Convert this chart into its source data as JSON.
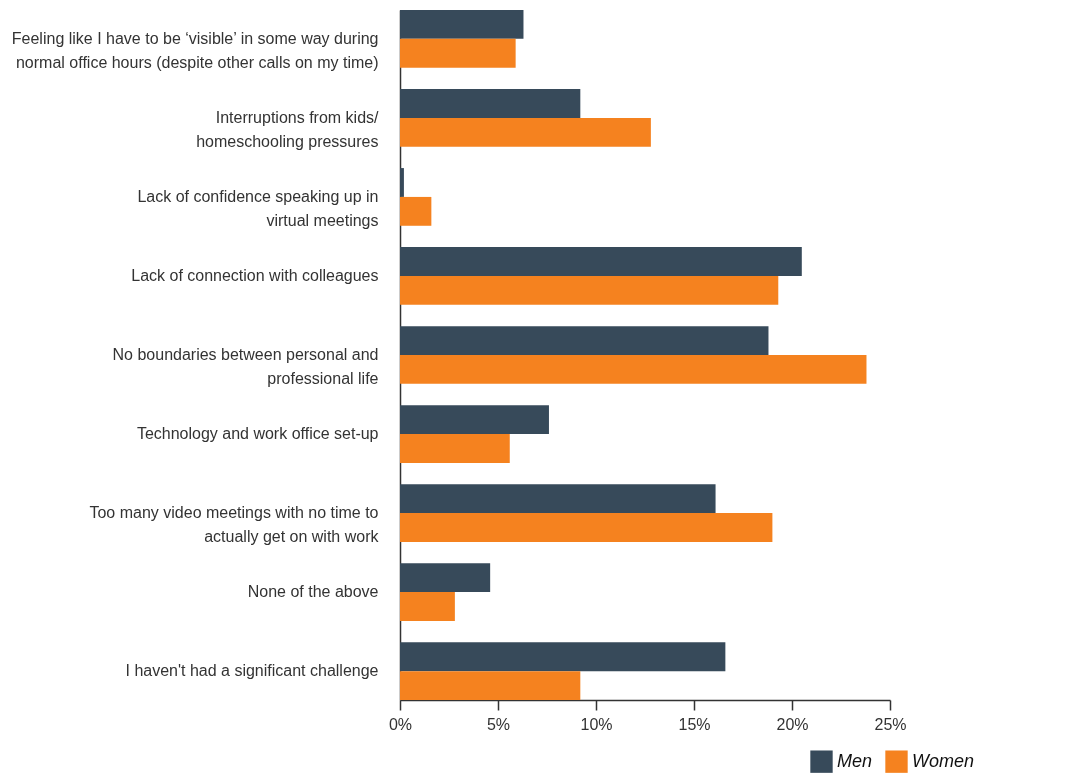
{
  "chart_data": {
    "type": "bar",
    "orientation": "horizontal",
    "categories": [
      "Feeling like I have to be ‘visible’ in some way during\nnormal office hours (despite other calls on my time)",
      "Interruptions from kids/\nhomeschooling pressures",
      "Lack of confidence speaking up in\nvirtual meetings",
      "Lack of connection with colleagues",
      "No boundaries between personal and\nprofessional life",
      "Technology and work office set-up",
      "Too many video meetings with no time to\nactually get on with work",
      "None of the above",
      "I haven't had a significant challenge"
    ],
    "series": [
      {
        "name": "Men",
        "color": "#374a5a",
        "values": [
          6.3,
          9.2,
          0.2,
          20.5,
          18.8,
          7.6,
          16.1,
          4.6,
          16.6
        ]
      },
      {
        "name": "Women",
        "color": "#f5821f",
        "values": [
          5.9,
          12.8,
          1.6,
          19.3,
          23.8,
          5.6,
          19.0,
          2.8,
          9.2
        ]
      }
    ],
    "xlim": [
      0,
      25
    ],
    "xticks": [
      {
        "value": 0,
        "label": "0%"
      },
      {
        "value": 5,
        "label": "5%"
      },
      {
        "value": 10,
        "label": "10%"
      },
      {
        "value": 15,
        "label": "15%"
      },
      {
        "value": 20,
        "label": "20%"
      },
      {
        "value": 25,
        "label": "25%"
      }
    ],
    "grid": false,
    "legend": "bottom right"
  }
}
